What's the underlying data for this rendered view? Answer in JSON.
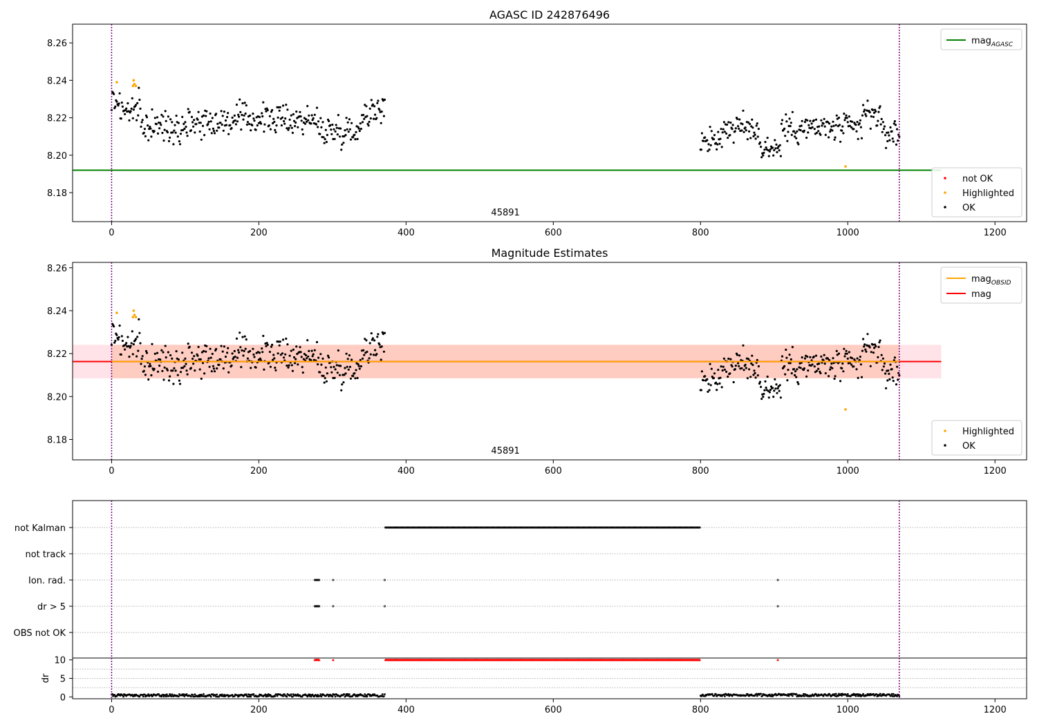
{
  "figure": {
    "title": "AGASC ID 242876496"
  },
  "chart_data": [
    {
      "type": "scatter",
      "title": "AGASC ID 242876496",
      "xlim": [
        -53,
        1243
      ],
      "ylim": [
        8.1645,
        8.27
      ],
      "xticks": [
        0,
        200,
        400,
        600,
        800,
        1000,
        1200
      ],
      "yticks": [
        8.18,
        8.2,
        8.22,
        8.24,
        8.26
      ],
      "ytick_labels": [
        "8.18",
        "8.20",
        "8.22",
        "8.24",
        "8.26"
      ],
      "obsid_label": "45891",
      "obsid_label_x": 535,
      "obs_boundaries": [
        0,
        1070
      ],
      "lines": [
        {
          "name": "mag",
          "name_sub": "AGASC",
          "color": "#008000",
          "y": 8.192,
          "x_range": [
            -53,
            1127
          ]
        }
      ],
      "legend_lines": {
        "position": "upper right",
        "entries": [
          {
            "label": "mag",
            "sub": "AGASC",
            "color": "#008000"
          }
        ]
      },
      "legend_markers": {
        "position": "lower right",
        "entries": [
          {
            "label": "not OK",
            "color": "#ff0000"
          },
          {
            "label": "Highlighted",
            "color": "#ffa500"
          },
          {
            "label": "OK",
            "color": "#000000"
          }
        ]
      },
      "highlighted_points": [
        [
          7,
          8.239
        ],
        [
          29,
          8.237
        ],
        [
          30,
          8.24
        ],
        [
          31,
          8.238
        ],
        [
          33,
          8.237
        ],
        [
          997,
          8.194
        ]
      ]
    },
    {
      "type": "scatter",
      "title": "Magnitude Estimates",
      "xlim": [
        -53,
        1243
      ],
      "ylim": [
        8.1705,
        8.2625
      ],
      "xticks": [
        0,
        200,
        400,
        600,
        800,
        1000,
        1200
      ],
      "yticks": [
        8.18,
        8.2,
        8.22,
        8.24,
        8.26
      ],
      "ytick_labels": [
        "8.18",
        "8.20",
        "8.22",
        "8.24",
        "8.26"
      ],
      "obsid_label": "45891",
      "obsid_label_x": 535,
      "obs_boundaries": [
        0,
        1070
      ],
      "lines": [
        {
          "name": "mag",
          "color": "#ff0000",
          "y": 8.2163,
          "x_range": [
            -53,
            1127
          ]
        },
        {
          "name": "mag",
          "name_sub": "OBSID",
          "color": "#ffa500",
          "y": 8.2163,
          "x_range": [
            0,
            1070
          ]
        }
      ],
      "bands": [
        {
          "color": "#ffc0cb",
          "opacity": 0.45,
          "y_range": [
            8.2085,
            8.2241
          ],
          "x_range": [
            -53,
            1127
          ]
        },
        {
          "color": "#ffa07a",
          "opacity": 0.35,
          "y_range": [
            8.2085,
            8.2241
          ],
          "x_range": [
            0,
            1070
          ]
        }
      ],
      "legend_lines": {
        "position": "upper right",
        "entries": [
          {
            "label": "mag",
            "sub": "OBSID",
            "color": "#ffa500"
          },
          {
            "label": "mag",
            "color": "#ff0000"
          }
        ]
      },
      "legend_markers": {
        "position": "lower right",
        "entries": [
          {
            "label": "Highlighted",
            "color": "#ffa500"
          },
          {
            "label": "OK",
            "color": "#000000"
          }
        ]
      },
      "highlighted_points": [
        [
          7,
          8.239
        ],
        [
          29,
          8.237
        ],
        [
          30,
          8.24
        ],
        [
          31,
          8.238
        ],
        [
          33,
          8.237
        ],
        [
          997,
          8.194
        ]
      ]
    },
    {
      "type": "scatter",
      "title": "",
      "xlim": [
        -53,
        1243
      ],
      "xticks": [
        0,
        200,
        400,
        600,
        800,
        1000,
        1200
      ],
      "obs_boundaries": [
        0,
        1070
      ],
      "flag_rows": [
        "not Kalman",
        "not track",
        "Ion. rad.",
        "dr > 5",
        "OBS not OK"
      ],
      "flag_points": {
        "not Kalman": [
          [
            372,
            799
          ]
        ],
        "not track": [],
        "Ion. rad.": [
          276,
          277,
          278,
          279,
          280,
          281,
          282,
          301,
          371,
          905
        ],
        "dr > 5": [
          276,
          277,
          278,
          279,
          280,
          281,
          282,
          301,
          371,
          905
        ],
        "OBS not OK": []
      },
      "dr_axis": {
        "ylabel": "dr",
        "ylim": [
          -0.5,
          10.5
        ],
        "yticks": [
          0,
          5,
          10
        ],
        "ytick_labels": [
          "0",
          "5",
          "10"
        ]
      },
      "dr_clipped_x": [
        276,
        277,
        278,
        279,
        280,
        281,
        282,
        301,
        [
          372,
          799
        ],
        905
      ],
      "dr_segments": [
        {
          "x_range": [
            0,
            371
          ],
          "base": 0.4,
          "amp": 0.35
        },
        {
          "x_range": [
            800,
            1070
          ],
          "base": 0.5,
          "amp": 0.35
        }
      ]
    }
  ]
}
